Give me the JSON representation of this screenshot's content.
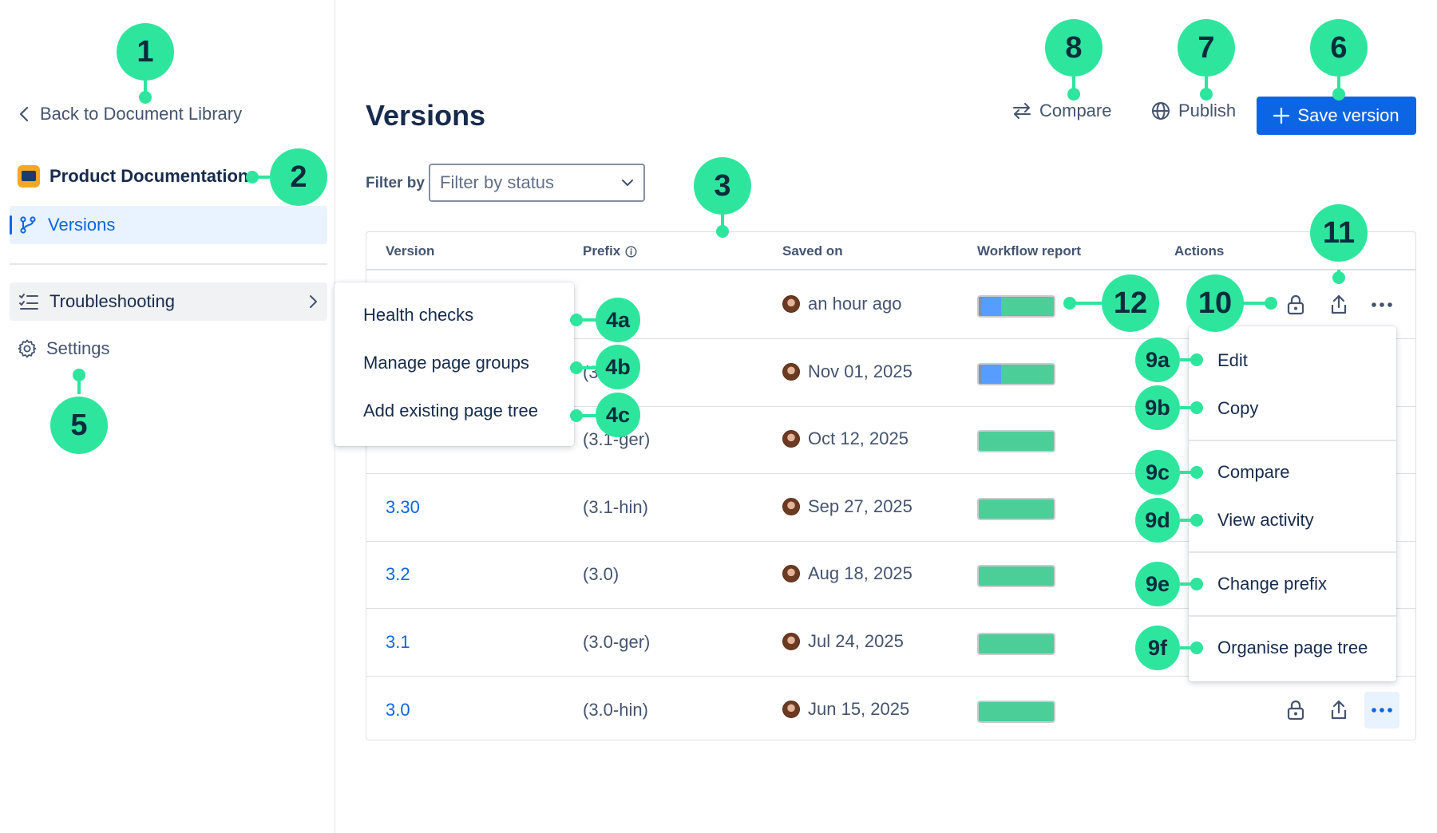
{
  "sidebar": {
    "back_label": "Back to Document Library",
    "space_name": "Product Documentation",
    "nav": {
      "versions": "Versions",
      "troubleshooting": "Troubleshooting",
      "settings": "Settings"
    },
    "troubleshooting_menu": [
      "Health checks",
      "Manage page groups",
      "Add existing page tree"
    ]
  },
  "header": {
    "title": "Versions",
    "compare_label": "Compare",
    "publish_label": "Publish",
    "save_label": "Save version"
  },
  "filter": {
    "label": "Filter by",
    "placeholder": "Filter by status"
  },
  "table": {
    "columns": {
      "version": "Version",
      "prefix": "Prefix",
      "saved_on": "Saved on",
      "workflow": "Workflow report",
      "actions": "Actions"
    },
    "rows": [
      {
        "version": "",
        "prefix": "",
        "saved_on": "an hour ago",
        "workflow": [
          {
            "color": "#8590a2",
            "fraction": 0.04
          },
          {
            "color": "#579dff",
            "fraction": 0.26
          },
          {
            "color": "#4bce97",
            "fraction": 0.7
          }
        ]
      },
      {
        "version": "",
        "prefix": "(3",
        "saved_on": "Nov 01, 2025",
        "workflow": [
          {
            "color": "#8590a2",
            "fraction": 0.04
          },
          {
            "color": "#579dff",
            "fraction": 0.26
          },
          {
            "color": "#4bce97",
            "fraction": 0.7
          }
        ]
      },
      {
        "version": "",
        "prefix": "(3.1-ger)",
        "saved_on": "Oct 12, 2025",
        "workflow": [
          {
            "color": "#4bce97",
            "fraction": 1.0
          }
        ]
      },
      {
        "version": "3.30",
        "prefix": "(3.1-hin)",
        "saved_on": "Sep 27, 2025",
        "workflow": [
          {
            "color": "#4bce97",
            "fraction": 1.0
          }
        ]
      },
      {
        "version": "3.2",
        "prefix": "(3.0)",
        "saved_on": "Aug 18, 2025",
        "workflow": [
          {
            "color": "#4bce97",
            "fraction": 1.0
          }
        ]
      },
      {
        "version": "3.1",
        "prefix": "(3.0-ger)",
        "saved_on": "Jul 24, 2025",
        "workflow": [
          {
            "color": "#4bce97",
            "fraction": 1.0
          }
        ]
      },
      {
        "version": "3.0",
        "prefix": "(3.0-hin)",
        "saved_on": "Jun 15, 2025",
        "workflow": [
          {
            "color": "#4bce97",
            "fraction": 1.0
          }
        ]
      }
    ]
  },
  "actions_menu": [
    "Edit",
    "Copy",
    "Compare",
    "View activity",
    "Change prefix",
    "Organise page tree"
  ],
  "icons": {
    "back": "chevron-left-icon",
    "versions": "branch-icon",
    "troubleshooting": "checklist-icon",
    "settings": "gear-icon",
    "compare": "arrows-swap-icon",
    "publish": "globe-icon",
    "save": "plus-icon",
    "lock": "lock-icon",
    "share": "share-icon",
    "more": "more-icon"
  },
  "callouts": [
    "1",
    "2",
    "3",
    "4a",
    "4b",
    "4c",
    "5",
    "6",
    "7",
    "8",
    "9a",
    "9b",
    "9c",
    "9d",
    "9e",
    "9f",
    "10",
    "11",
    "12"
  ],
  "colors": {
    "accent": "#0c66e4",
    "callout": "#2ee59d",
    "selected_nav_bg": "#e9f2ff"
  }
}
